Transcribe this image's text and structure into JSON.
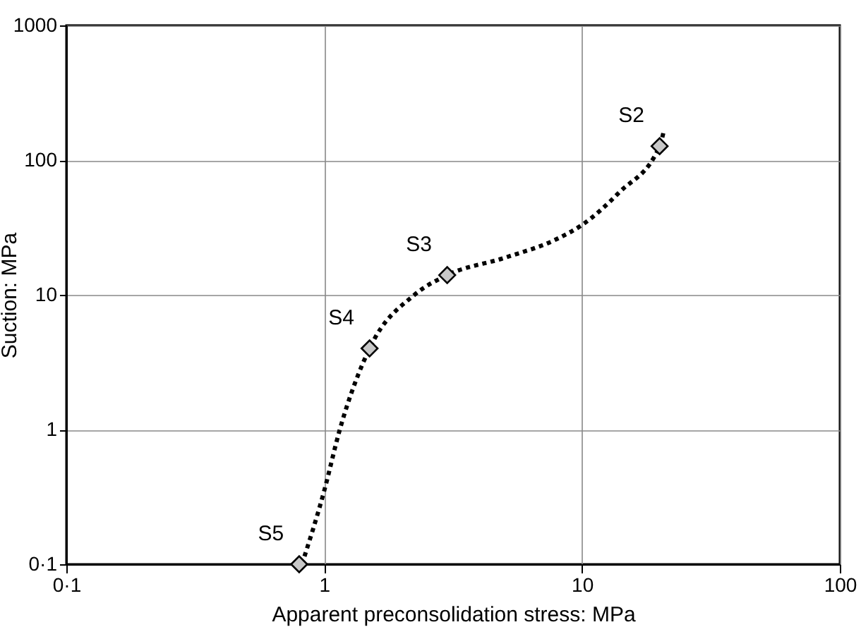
{
  "chart_data": {
    "type": "scatter",
    "xlabel": "Apparent preconsolidation stress: MPa",
    "ylabel": "Suction: MPa",
    "log": "xy",
    "grid": true,
    "xlim": [
      0.1,
      100
    ],
    "ylim": [
      0.1,
      1000
    ],
    "xticks": [
      {
        "value": 0.1,
        "label": "0·1"
      },
      1,
      10,
      100
    ],
    "yticks": [
      {
        "value": 0.1,
        "label": "0·1"
      },
      1,
      10,
      100,
      {
        "value": 1000,
        "label": "1000"
      }
    ],
    "series": [
      {
        "color": "#c8c8c8",
        "marker": "diamond",
        "x": [
          20,
          3,
          1.5,
          0.8
        ],
        "values": [
          127,
          14,
          4,
          0.1
        ]
      },
      {
        "type": "line",
        "color": "#000000",
        "line_style": "dotted",
        "marker": "none",
        "x": [
          0.82,
          1.0,
          1.15,
          1.5,
          2.24,
          3,
          5,
          8,
          10,
          14,
          20,
          20.8
        ],
        "values": [
          0.1,
          0.35,
          1,
          4,
          10,
          14,
          18.8,
          26,
          33,
          58,
          127,
          167
        ]
      }
    ],
    "annotations": [
      {
        "text": "S2",
        "x": 20,
        "y": 127
      },
      {
        "text": "S3",
        "x": 3,
        "y": 14
      },
      {
        "text": "S4",
        "x": 1.5,
        "y": 4
      },
      {
        "text": "S5",
        "x": 0.8,
        "y": 0.1
      }
    ]
  }
}
